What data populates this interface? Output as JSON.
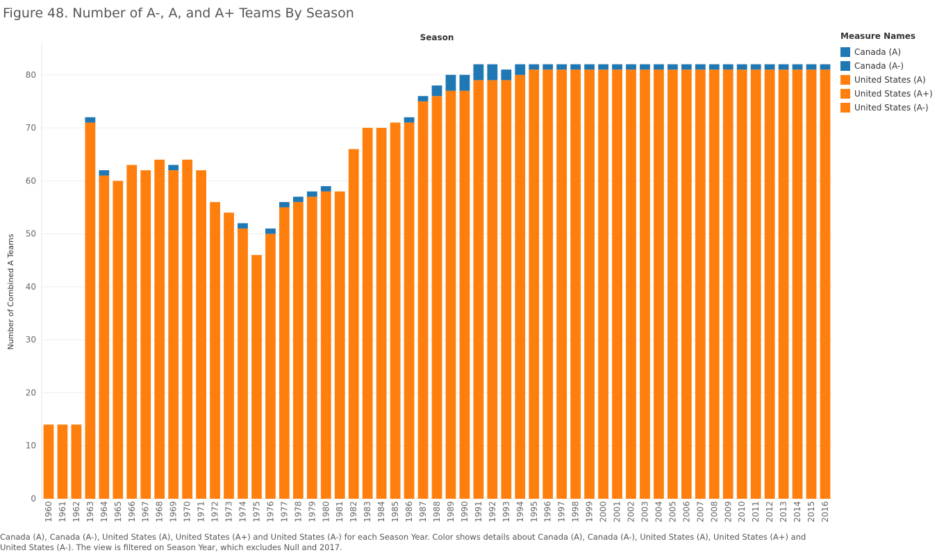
{
  "figure_title": "Figure 48. Number of A-, A, and A+ Teams By Season",
  "caption": "Canada (A), Canada (A-), United States (A), United States (A+) and United States (A-) for each Season Year.  Color shows details about Canada (A), Canada (A-), United States (A), United States (A+) and United States (A-). The view is filtered on Season Year, which excludes Null and 2017.",
  "legend": {
    "title": "Measure Names",
    "items": [
      {
        "label": "Canada (A)",
        "color": "#1f77b4"
      },
      {
        "label": "Canada (A-)",
        "color": "#1f77b4"
      },
      {
        "label": "United States (A)",
        "color": "#ff7f0e"
      },
      {
        "label": "United States (A+)",
        "color": "#ff7f0e"
      },
      {
        "label": "United States (A-)",
        "color": "#ff7f0e"
      }
    ]
  },
  "chart_data": {
    "type": "bar",
    "stacked": true,
    "title": "Season",
    "xlabel": "",
    "ylabel": "Number of Combined A Teams",
    "ylim": [
      0,
      86
    ],
    "yticks": [
      0,
      10,
      20,
      30,
      40,
      50,
      60,
      70,
      80
    ],
    "grid": true,
    "legend_position": "right",
    "categories": [
      "1960",
      "1961",
      "1962",
      "1963",
      "1964",
      "1965",
      "1966",
      "1967",
      "1968",
      "1969",
      "1970",
      "1971",
      "1972",
      "1973",
      "1974",
      "1975",
      "1976",
      "1977",
      "1978",
      "1979",
      "1980",
      "1981",
      "1982",
      "1983",
      "1984",
      "1985",
      "1986",
      "1987",
      "1988",
      "1989",
      "1990",
      "1991",
      "1992",
      "1993",
      "1994",
      "1995",
      "1996",
      "1997",
      "1998",
      "1999",
      "2000",
      "2001",
      "2002",
      "2003",
      "2004",
      "2005",
      "2006",
      "2007",
      "2008",
      "2009",
      "2010",
      "2011",
      "2012",
      "2013",
      "2014",
      "2015",
      "2016"
    ],
    "series": [
      {
        "name": "United States",
        "color": "#ff7f0e",
        "values": [
          14,
          14,
          14,
          71,
          61,
          60,
          63,
          62,
          64,
          62,
          64,
          62,
          56,
          54,
          51,
          46,
          50,
          55,
          56,
          57,
          58,
          58,
          66,
          70,
          70,
          71,
          71,
          75,
          76,
          77,
          77,
          79,
          79,
          79,
          80,
          81,
          81,
          81,
          81,
          81,
          81,
          81,
          81,
          81,
          81,
          81,
          81,
          81,
          81,
          81,
          81,
          81,
          81,
          81,
          81,
          81,
          81
        ]
      },
      {
        "name": "Canada",
        "color": "#1f77b4",
        "values": [
          0,
          0,
          0,
          1,
          1,
          0,
          0,
          0,
          0,
          1,
          0,
          0,
          0,
          0,
          1,
          0,
          1,
          1,
          1,
          1,
          1,
          0,
          0,
          0,
          0,
          0,
          1,
          1,
          2,
          3,
          3,
          3,
          3,
          2,
          2,
          1,
          1,
          1,
          1,
          1,
          1,
          1,
          1,
          1,
          1,
          1,
          1,
          1,
          1,
          1,
          1,
          1,
          1,
          1,
          1,
          1,
          1
        ]
      }
    ]
  }
}
